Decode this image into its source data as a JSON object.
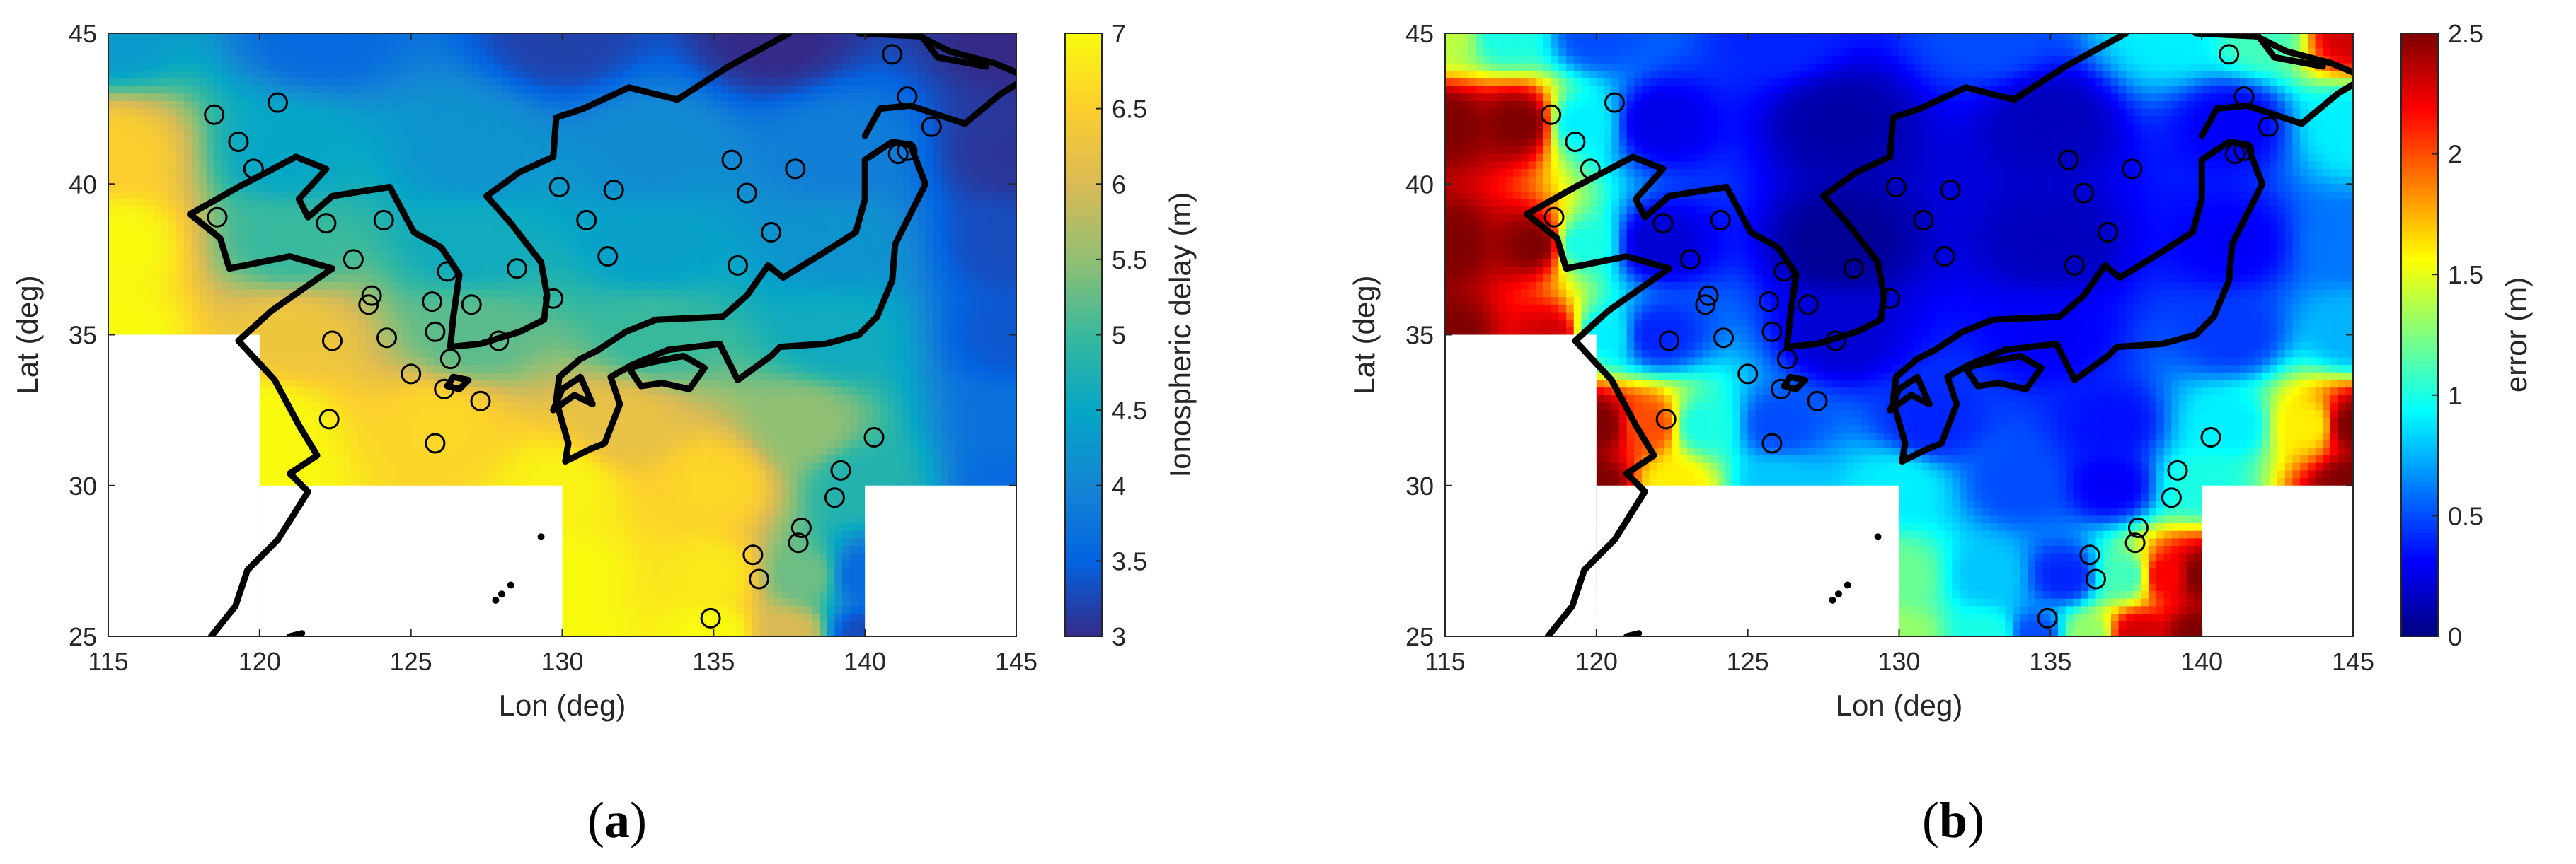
{
  "panels": [
    {
      "label_open": "(",
      "label_letter": "a",
      "label_close": ")"
    },
    {
      "label_open": "(",
      "label_letter": "b",
      "label_close": ")"
    }
  ],
  "colors": {
    "axis": "#262626",
    "coast": "#000000",
    "markers": "#000000",
    "parula": [
      "#352a87",
      "#0363e1",
      "#1485d4",
      "#06a7c6",
      "#38b99e",
      "#92bf73",
      "#d9ba56",
      "#fcce2e",
      "#f9fb0e"
    ],
    "jet": [
      "#00007f",
      "#0000ff",
      "#007fff",
      "#00ffff",
      "#7fff7f",
      "#ffff00",
      "#ff7f00",
      "#ff0000",
      "#7f0000"
    ]
  },
  "chart_data": [
    {
      "type": "heatmap",
      "xlabel": "Lon (deg)",
      "ylabel": "Lat (deg)",
      "xlim": [
        115,
        145
      ],
      "ylim": [
        25,
        45
      ],
      "xticks": [
        "115",
        "120",
        "125",
        "130",
        "135",
        "140",
        "145"
      ],
      "yticks": [
        "25",
        "30",
        "35",
        "40",
        "45"
      ],
      "colorbar": {
        "label": "Ionospheric delay (m)",
        "range": [
          3,
          7
        ],
        "colormap": "parula",
        "ticks": [
          "3",
          "3.5",
          "4",
          "4.5",
          "5",
          "5.5",
          "6",
          "6.5",
          "7"
        ]
      },
      "masked_regions": [
        {
          "lon": [
            115,
            120
          ],
          "lat": [
            25,
            35
          ]
        },
        {
          "lon": [
            120,
            130
          ],
          "lat": [
            25,
            30
          ]
        },
        {
          "lon": [
            140,
            145
          ],
          "lat": [
            25,
            30
          ]
        }
      ],
      "field_samples": [
        {
          "lon": 115,
          "lat": 45,
          "value": 4.3
        },
        {
          "lon": 122,
          "lat": 45,
          "value": 3.6
        },
        {
          "lon": 130,
          "lat": 45,
          "value": 3.2
        },
        {
          "lon": 137,
          "lat": 45,
          "value": 3.0
        },
        {
          "lon": 145,
          "lat": 45,
          "value": 3.0
        },
        {
          "lon": 115,
          "lat": 41,
          "value": 6.5
        },
        {
          "lon": 121,
          "lat": 41,
          "value": 4.5
        },
        {
          "lon": 127,
          "lat": 41,
          "value": 4.2
        },
        {
          "lon": 133,
          "lat": 41,
          "value": 4.1
        },
        {
          "lon": 139,
          "lat": 41,
          "value": 3.9
        },
        {
          "lon": 145,
          "lat": 41,
          "value": 3.1
        },
        {
          "lon": 115,
          "lat": 38,
          "value": 7.0
        },
        {
          "lon": 121,
          "lat": 38,
          "value": 5.0
        },
        {
          "lon": 127,
          "lat": 38,
          "value": 4.6
        },
        {
          "lon": 133,
          "lat": 38,
          "value": 4.4
        },
        {
          "lon": 139,
          "lat": 38,
          "value": 4.2
        },
        {
          "lon": 145,
          "lat": 38,
          "value": 3.3
        },
        {
          "lon": 115,
          "lat": 35,
          "value": 7.0
        },
        {
          "lon": 121,
          "lat": 35,
          "value": 6.3
        },
        {
          "lon": 127,
          "lat": 35,
          "value": 5.2
        },
        {
          "lon": 133,
          "lat": 35,
          "value": 5.0
        },
        {
          "lon": 139,
          "lat": 35,
          "value": 4.6
        },
        {
          "lon": 145,
          "lat": 35,
          "value": 3.4
        },
        {
          "lon": 120,
          "lat": 32,
          "value": 7.0
        },
        {
          "lon": 126,
          "lat": 32,
          "value": 6.6
        },
        {
          "lon": 132,
          "lat": 32,
          "value": 6.2
        },
        {
          "lon": 138,
          "lat": 32,
          "value": 5.5
        },
        {
          "lon": 145,
          "lat": 32,
          "value": 3.7
        },
        {
          "lon": 120,
          "lat": 30,
          "value": 7.0
        },
        {
          "lon": 130,
          "lat": 30,
          "value": 6.9
        },
        {
          "lon": 135,
          "lat": 30,
          "value": 6.6
        },
        {
          "lon": 140,
          "lat": 30,
          "value": 4.8
        },
        {
          "lon": 145,
          "lat": 30,
          "value": 3.6
        },
        {
          "lon": 130,
          "lat": 27,
          "value": 7.0
        },
        {
          "lon": 135,
          "lat": 27,
          "value": 6.8
        },
        {
          "lon": 138,
          "lat": 27,
          "value": 5.3
        },
        {
          "lon": 140,
          "lat": 27,
          "value": 3.6
        },
        {
          "lon": 130,
          "lat": 25,
          "value": 7.0
        },
        {
          "lon": 135,
          "lat": 25,
          "value": 7.0
        },
        {
          "lon": 137.5,
          "lat": 25,
          "value": 6.0
        },
        {
          "lon": 140,
          "lat": 25,
          "value": 3.3
        }
      ],
      "stations": [
        [
          118.5,
          42.3
        ],
        [
          119.3,
          41.4
        ],
        [
          119.8,
          40.5
        ],
        [
          120.6,
          42.7
        ],
        [
          118.6,
          38.9
        ],
        [
          122.2,
          38.7
        ],
        [
          124.1,
          38.8
        ],
        [
          123.1,
          37.5
        ],
        [
          123.7,
          36.3
        ],
        [
          123.6,
          36.0
        ],
        [
          122.4,
          34.8
        ],
        [
          124.2,
          34.9
        ],
        [
          125.0,
          33.7
        ],
        [
          125.7,
          36.1
        ],
        [
          125.8,
          35.1
        ],
        [
          126.2,
          37.1
        ],
        [
          127.0,
          36.0
        ],
        [
          126.3,
          34.2
        ],
        [
          126.1,
          33.2
        ],
        [
          127.3,
          32.8
        ],
        [
          127.9,
          34.8
        ],
        [
          128.5,
          37.2
        ],
        [
          129.7,
          36.2
        ],
        [
          129.9,
          39.9
        ],
        [
          130.8,
          38.8
        ],
        [
          131.7,
          39.8
        ],
        [
          131.5,
          37.6
        ],
        [
          125.8,
          31.4
        ],
        [
          122.3,
          32.2
        ],
        [
          135.6,
          40.8
        ],
        [
          136.1,
          39.7
        ],
        [
          136.9,
          38.4
        ],
        [
          137.7,
          40.5
        ],
        [
          135.8,
          37.3
        ],
        [
          140.9,
          44.3
        ],
        [
          141.4,
          42.9
        ],
        [
          142.2,
          41.9
        ],
        [
          141.1,
          41.0
        ],
        [
          141.4,
          41.1
        ],
        [
          139.2,
          30.5
        ],
        [
          140.3,
          31.6
        ],
        [
          139.0,
          29.6
        ],
        [
          137.9,
          28.6
        ],
        [
          137.8,
          28.1
        ],
        [
          136.3,
          27.7
        ],
        [
          136.5,
          26.9
        ],
        [
          134.9,
          25.6
        ]
      ]
    },
    {
      "type": "heatmap",
      "xlabel": "Lon (deg)",
      "ylabel": "Lat (deg)",
      "xlim": [
        115,
        145
      ],
      "ylim": [
        25,
        45
      ],
      "xticks": [
        "115",
        "120",
        "125",
        "130",
        "135",
        "140",
        "145"
      ],
      "yticks": [
        "25",
        "30",
        "35",
        "40",
        "45"
      ],
      "colorbar": {
        "label": "error (m)",
        "range": [
          0,
          2.5
        ],
        "colormap": "jet",
        "ticks": [
          "0",
          "0.5",
          "1",
          "1.5",
          "2",
          "2.5"
        ]
      },
      "masked_regions": [
        {
          "lon": [
            115,
            120
          ],
          "lat": [
            25,
            35
          ]
        },
        {
          "lon": [
            120,
            130
          ],
          "lat": [
            25,
            30
          ]
        },
        {
          "lon": [
            140,
            145
          ],
          "lat": [
            25,
            30
          ]
        }
      ],
      "field_samples": [
        {
          "lon": 115,
          "lat": 45,
          "value": 1.4
        },
        {
          "lon": 117,
          "lat": 45,
          "value": 1.0
        },
        {
          "lon": 120,
          "lat": 45,
          "value": 0.5
        },
        {
          "lon": 126,
          "lat": 45,
          "value": 0.4
        },
        {
          "lon": 133,
          "lat": 45,
          "value": 0.5
        },
        {
          "lon": 139,
          "lat": 45,
          "value": 0.9
        },
        {
          "lon": 142,
          "lat": 45,
          "value": 1.1
        },
        {
          "lon": 145,
          "lat": 45,
          "value": 2.3
        },
        {
          "lon": 115,
          "lat": 42,
          "value": 2.5
        },
        {
          "lon": 117.5,
          "lat": 42,
          "value": 2.5
        },
        {
          "lon": 119.5,
          "lat": 42,
          "value": 0.9
        },
        {
          "lon": 122,
          "lat": 42,
          "value": 0.25
        },
        {
          "lon": 128,
          "lat": 42,
          "value": 0.1
        },
        {
          "lon": 135,
          "lat": 42,
          "value": 0.15
        },
        {
          "lon": 141,
          "lat": 42,
          "value": 0.3
        },
        {
          "lon": 145,
          "lat": 42,
          "value": 0.9
        },
        {
          "lon": 115,
          "lat": 38,
          "value": 2.5
        },
        {
          "lon": 118,
          "lat": 38,
          "value": 2.5
        },
        {
          "lon": 119.5,
          "lat": 38,
          "value": 1.0
        },
        {
          "lon": 122,
          "lat": 38,
          "value": 0.2
        },
        {
          "lon": 128,
          "lat": 38,
          "value": 0.05
        },
        {
          "lon": 135,
          "lat": 38,
          "value": 0.15
        },
        {
          "lon": 141,
          "lat": 38,
          "value": 0.3
        },
        {
          "lon": 145,
          "lat": 38,
          "value": 0.6
        },
        {
          "lon": 115,
          "lat": 35,
          "value": 2.5
        },
        {
          "lon": 118.5,
          "lat": 35,
          "value": 2.3
        },
        {
          "lon": 120.2,
          "lat": 35,
          "value": 0.9
        },
        {
          "lon": 122,
          "lat": 35,
          "value": 0.4
        },
        {
          "lon": 128,
          "lat": 35,
          "value": 0.2
        },
        {
          "lon": 135,
          "lat": 35,
          "value": 0.3
        },
        {
          "lon": 141,
          "lat": 35,
          "value": 0.45
        },
        {
          "lon": 145,
          "lat": 35,
          "value": 0.75
        },
        {
          "lon": 120,
          "lat": 32,
          "value": 2.5
        },
        {
          "lon": 121.8,
          "lat": 32,
          "value": 2.0
        },
        {
          "lon": 123.5,
          "lat": 32,
          "value": 1.0
        },
        {
          "lon": 126,
          "lat": 32,
          "value": 0.5
        },
        {
          "lon": 131,
          "lat": 32,
          "value": 0.4
        },
        {
          "lon": 137,
          "lat": 32,
          "value": 0.35
        },
        {
          "lon": 141,
          "lat": 32,
          "value": 0.9
        },
        {
          "lon": 143.5,
          "lat": 32,
          "value": 1.6
        },
        {
          "lon": 145,
          "lat": 32,
          "value": 2.5
        },
        {
          "lon": 120,
          "lat": 30,
          "value": 2.5
        },
        {
          "lon": 122.5,
          "lat": 30,
          "value": 1.6
        },
        {
          "lon": 126,
          "lat": 30,
          "value": 0.8
        },
        {
          "lon": 130,
          "lat": 30,
          "value": 0.9
        },
        {
          "lon": 134,
          "lat": 30,
          "value": 0.5
        },
        {
          "lon": 137,
          "lat": 30,
          "value": 0.3
        },
        {
          "lon": 140,
          "lat": 30,
          "value": 1.0
        },
        {
          "lon": 145,
          "lat": 30,
          "value": 2.5
        },
        {
          "lon": 130,
          "lat": 27,
          "value": 1.2
        },
        {
          "lon": 133,
          "lat": 27,
          "value": 0.8
        },
        {
          "lon": 135.5,
          "lat": 27,
          "value": 0.4
        },
        {
          "lon": 137.5,
          "lat": 27,
          "value": 1.1
        },
        {
          "lon": 138.8,
          "lat": 27,
          "value": 2.2
        },
        {
          "lon": 140,
          "lat": 27,
          "value": 2.5
        },
        {
          "lon": 130,
          "lat": 25,
          "value": 1.3
        },
        {
          "lon": 133,
          "lat": 25,
          "value": 1.0
        },
        {
          "lon": 134.5,
          "lat": 25,
          "value": 0.5
        },
        {
          "lon": 136.3,
          "lat": 25,
          "value": 1.3
        },
        {
          "lon": 137.8,
          "lat": 25,
          "value": 2.3
        },
        {
          "lon": 140,
          "lat": 25,
          "value": 2.5
        }
      ],
      "stations": [
        [
          118.5,
          42.3
        ],
        [
          119.3,
          41.4
        ],
        [
          119.8,
          40.5
        ],
        [
          120.6,
          42.7
        ],
        [
          118.6,
          38.9
        ],
        [
          122.2,
          38.7
        ],
        [
          124.1,
          38.8
        ],
        [
          123.1,
          37.5
        ],
        [
          123.7,
          36.3
        ],
        [
          123.6,
          36.0
        ],
        [
          122.4,
          34.8
        ],
        [
          124.2,
          34.9
        ],
        [
          125.0,
          33.7
        ],
        [
          125.7,
          36.1
        ],
        [
          125.8,
          35.1
        ],
        [
          126.2,
          37.1
        ],
        [
          127.0,
          36.0
        ],
        [
          126.3,
          34.2
        ],
        [
          126.1,
          33.2
        ],
        [
          127.3,
          32.8
        ],
        [
          127.9,
          34.8
        ],
        [
          128.5,
          37.2
        ],
        [
          129.7,
          36.2
        ],
        [
          129.9,
          39.9
        ],
        [
          130.8,
          38.8
        ],
        [
          131.7,
          39.8
        ],
        [
          131.5,
          37.6
        ],
        [
          125.8,
          31.4
        ],
        [
          122.3,
          32.2
        ],
        [
          135.6,
          40.8
        ],
        [
          136.1,
          39.7
        ],
        [
          136.9,
          38.4
        ],
        [
          137.7,
          40.5
        ],
        [
          135.8,
          37.3
        ],
        [
          140.9,
          44.3
        ],
        [
          141.4,
          42.9
        ],
        [
          142.2,
          41.9
        ],
        [
          141.1,
          41.0
        ],
        [
          141.4,
          41.1
        ],
        [
          139.2,
          30.5
        ],
        [
          140.3,
          31.6
        ],
        [
          139.0,
          29.6
        ],
        [
          137.9,
          28.6
        ],
        [
          137.8,
          28.1
        ],
        [
          136.3,
          27.7
        ],
        [
          136.5,
          26.9
        ],
        [
          134.9,
          25.6
        ]
      ]
    }
  ]
}
